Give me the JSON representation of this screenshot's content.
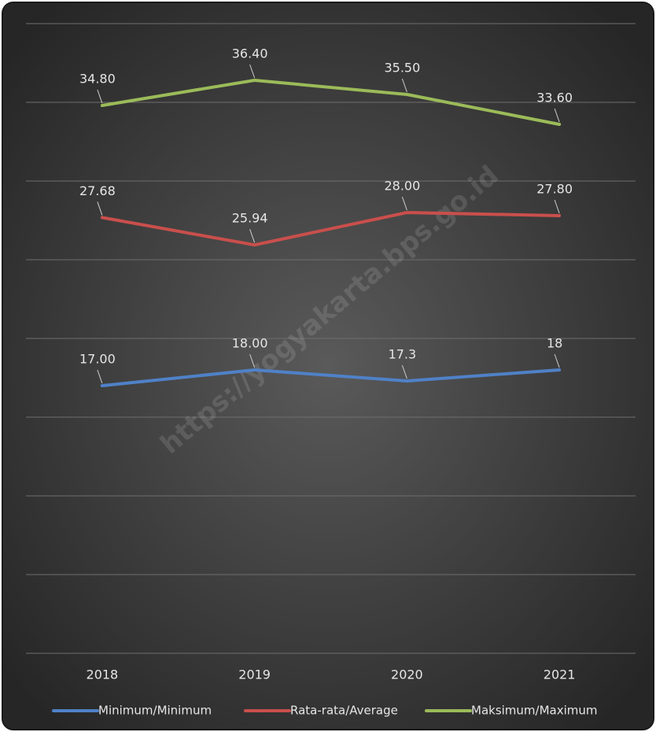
{
  "chart_data": {
    "type": "line",
    "categories": [
      "2018",
      "2019",
      "2020",
      "2021"
    ],
    "series": [
      {
        "name": "Minimum/Minimum",
        "color": "#4f81c7",
        "values": [
          17,
          18,
          17.3,
          18
        ],
        "value_labels": [
          "17.00",
          "18.00",
          "17.3",
          "18"
        ]
      },
      {
        "name": "Rata-rata/Average",
        "color": "#c94f4c",
        "values": [
          27.68,
          25.94,
          28,
          27.8
        ],
        "value_labels": [
          "27.68",
          "25.94",
          "28.00",
          "27.80"
        ]
      },
      {
        "name": "Maksimum/Maximum",
        "color": "#9bbb59",
        "values": [
          34.8,
          36.4,
          35.5,
          33.6
        ],
        "value_labels": [
          "34.80",
          "36.40",
          "35.50",
          "33.60"
        ]
      }
    ],
    "ylim": [
      0,
      40
    ],
    "yticks": [
      0,
      5,
      10,
      15,
      20,
      25,
      30,
      35,
      40
    ],
    "grid": true,
    "legend": "bottom",
    "watermark": "https://yogyakarta.bps.go.id"
  }
}
